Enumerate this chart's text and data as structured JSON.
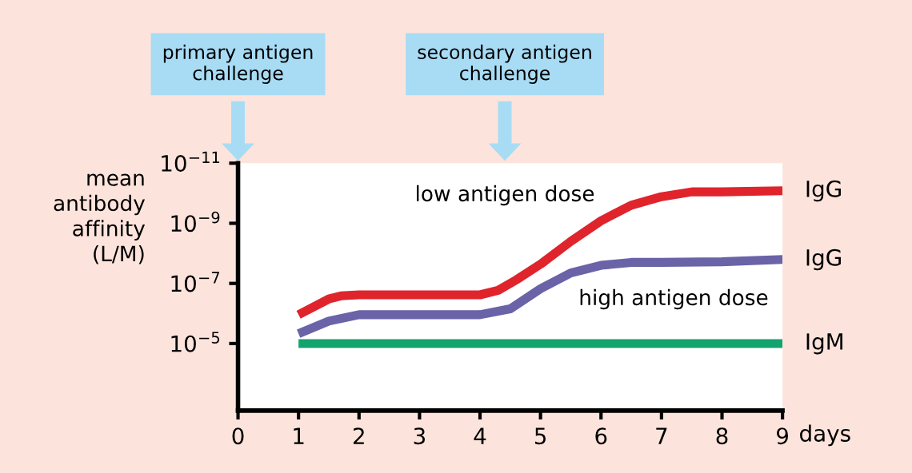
{
  "chart_data": {
    "type": "line",
    "log": "y",
    "xlabel": "days",
    "ylabel": "mean\nantibody\naffinity\n(L/M)",
    "xlim": [
      0,
      9
    ],
    "xticks": [
      0,
      1,
      2,
      3,
      4,
      5,
      6,
      7,
      8,
      9
    ],
    "ylim": [
      0.0017,
      1e-11
    ],
    "yticks": [
      {
        "value": 1e-11,
        "label": "10$^{−11}$"
      },
      {
        "value": 1e-09,
        "label": "10$^{−9}$"
      },
      {
        "value": 1e-07,
        "label": "10$^{−7}$"
      },
      {
        "value": 1e-05,
        "label": "10$^{−5}$"
      }
    ],
    "grid": false,
    "marker": "none",
    "line_style": "solid",
    "series": [
      {
        "name": "IgG",
        "color": "#e0242c",
        "x": [
          1,
          1.5,
          1.7,
          2,
          4,
          4.3,
          4.6,
          5,
          5.5,
          6,
          6.5,
          7,
          7.5,
          8,
          9
        ],
        "values": [
          1.1e-06,
          3.3e-07,
          2.6e-07,
          2.4e-07,
          2.4e-07,
          1.7e-07,
          7.6e-08,
          2.3e-08,
          4e-09,
          8.3e-10,
          2.5e-10,
          1.3e-10,
          9e-11,
          9e-11,
          8.3e-11
        ]
      },
      {
        "name": "IgG",
        "color": "#6a63a8",
        "x": [
          1,
          1.5,
          2,
          4,
          4.5,
          5,
          5.5,
          6,
          6.5,
          7,
          8,
          9
        ],
        "values": [
          4.7e-06,
          1.8e-06,
          1.1e-06,
          1.1e-06,
          7e-07,
          1.5e-07,
          4.5e-08,
          2.5e-08,
          2e-08,
          2e-08,
          1.9e-08,
          1.6e-08
        ]
      },
      {
        "name": "IgM",
        "color": "#12a36e",
        "x": [
          1,
          9
        ],
        "values": [
          1e-05,
          1e-05
        ]
      }
    ],
    "annotations": [
      "low antigen dose",
      "high antigen dose",
      "primary antigen\nchallenge",
      "secondary antigen\nchallenge"
    ]
  }
}
